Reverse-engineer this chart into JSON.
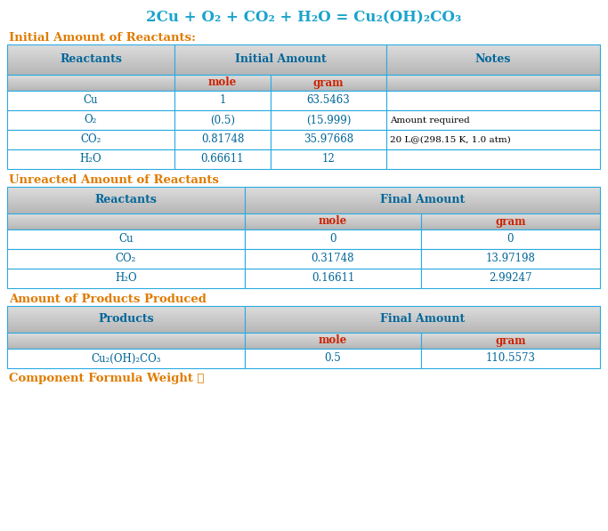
{
  "title": "2Cu + O₂ + CO₂ + H₂O = Cu₂(OH)₂CO₃",
  "title_color": "#1aa3cc",
  "section1_title": "Initial Amount of Reactants:",
  "section2_title": "Unreacted Amount of Reactants",
  "section3_title": "Amount of Products Produced",
  "section4_title": "Component Formula Weight ➕",
  "section_title_color": "#e07b00",
  "header_bg": "#c8c8c8",
  "subheader_bg": "#d8d8d8",
  "header_text_color": "#006699",
  "subheader_text_color": "#cc2200",
  "cell_text_color": "#006699",
  "border_color": "#29abe2",
  "white": "#ffffff",
  "table1_rows": [
    [
      "Cu",
      "1",
      "63.5463",
      ""
    ],
    [
      "O₂",
      "(0.5)",
      "(15.999)",
      "Amount required"
    ],
    [
      "CO₂",
      "0.81748",
      "35.97668",
      "20 L@(298.15 K, 1.0 atm)"
    ],
    [
      "H₂O",
      "0.66611",
      "12",
      ""
    ]
  ],
  "table2_rows": [
    [
      "Cu",
      "0",
      "0"
    ],
    [
      "CO₂",
      "0.31748",
      "13.97198"
    ],
    [
      "H₂O",
      "0.16611",
      "2.99247"
    ]
  ],
  "table3_rows": [
    [
      "Cu₂(OH)₂CO₃",
      "0.5",
      "110.5573"
    ]
  ]
}
